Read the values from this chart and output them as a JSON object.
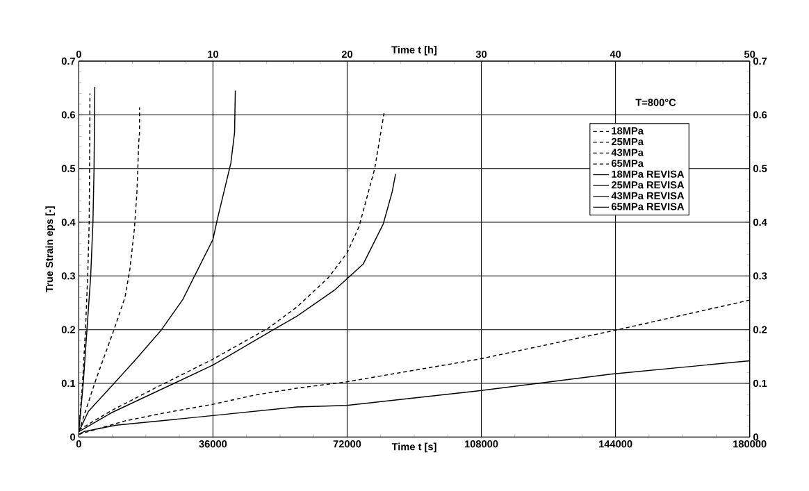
{
  "chart_data": {
    "type": "line",
    "xlabel": "Time t [s]",
    "x2label": "Time t [h]",
    "ylabel": "True Strain eps [-]",
    "annotations": [
      "T=800°C"
    ],
    "xlim": [
      0,
      180000
    ],
    "xticks": [
      0,
      36000,
      72000,
      108000,
      144000,
      180000
    ],
    "x2lim": [
      0,
      50
    ],
    "x2ticks": [
      0,
      10,
      20,
      30,
      40,
      50
    ],
    "ylim": [
      0,
      0.7
    ],
    "yticks": [
      0,
      0.1,
      0.2,
      0.3,
      0.4,
      0.5,
      0.6,
      0.7
    ],
    "y2lim": [
      0,
      0.7
    ],
    "y2ticks": [
      0,
      0.1,
      0.2,
      0.3,
      0.4,
      0.5,
      0.6,
      0.7
    ],
    "grid": true,
    "legend": "top right",
    "marker": "none",
    "series": [
      {
        "name": "18MPa",
        "color": "#000000",
        "line_style": "dashed",
        "x": [
          0,
          12400,
          23000,
          36000,
          47100,
          58500,
          72000,
          107300,
          142700,
          180000
        ],
        "values": [
          0.005,
          0.03,
          0.045,
          0.061,
          0.078,
          0.091,
          0.103,
          0.145,
          0.197,
          0.255
        ]
      },
      {
        "name": "25MPa",
        "color": "#000000",
        "line_style": "dashed",
        "x": [
          0,
          8700,
          20400,
          36000,
          50900,
          58500,
          67000,
          72000,
          75200,
          79400,
          81900
        ],
        "values": [
          0.013,
          0.049,
          0.091,
          0.145,
          0.203,
          0.242,
          0.297,
          0.343,
          0.392,
          0.5,
          0.603
        ]
      },
      {
        "name": "43MPa",
        "color": "#000000",
        "line_style": "dashed",
        "x": [
          0,
          4450,
          9650,
          12400,
          13700,
          14900,
          15600,
          16100,
          16300,
          16300
        ],
        "values": [
          0.01,
          0.104,
          0.204,
          0.26,
          0.312,
          0.386,
          0.455,
          0.55,
          0.567,
          0.614
        ]
      },
      {
        "name": "65MPa",
        "color": "#000000",
        "line_style": "dashed",
        "x": [
          0,
          1000,
          1800,
          2400,
          2800,
          2900,
          3000
        ],
        "values": [
          0.01,
          0.1,
          0.2,
          0.3,
          0.4,
          0.5,
          0.64
        ]
      },
      {
        "name": "18MPa REVISA",
        "color": "#000000",
        "line_style": "solid",
        "x": [
          0,
          1300,
          10000,
          36000,
          58500,
          72000,
          107300,
          142700,
          180000
        ],
        "values": [
          0.005,
          0.01,
          0.022,
          0.04,
          0.056,
          0.059,
          0.086,
          0.117,
          0.142
        ]
      },
      {
        "name": "25MPa REVISA",
        "color": "#000000",
        "line_style": "solid",
        "x": [
          0,
          8700,
          36000,
          52000,
          58500,
          68500,
          72000,
          76300,
          81700,
          84100,
          85000
        ],
        "values": [
          0.01,
          0.045,
          0.134,
          0.199,
          0.225,
          0.273,
          0.295,
          0.322,
          0.397,
          0.457,
          0.49
        ]
      },
      {
        "name": "43MPa REVISA",
        "color": "#000000",
        "line_style": "solid",
        "x": [
          0,
          2600,
          9100,
          15600,
          22100,
          27900,
          31000,
          36000,
          37100,
          40800,
          41800,
          42000
        ],
        "values": [
          0.01,
          0.048,
          0.097,
          0.147,
          0.199,
          0.256,
          0.299,
          0.368,
          0.403,
          0.51,
          0.567,
          0.645
        ]
      },
      {
        "name": "65MPa REVISA",
        "color": "#000000",
        "line_style": "solid",
        "x": [
          0,
          1200,
          2200,
          3200,
          3800,
          4100,
          4300
        ],
        "values": [
          0.01,
          0.1,
          0.2,
          0.3,
          0.4,
          0.5,
          0.652
        ]
      }
    ]
  }
}
